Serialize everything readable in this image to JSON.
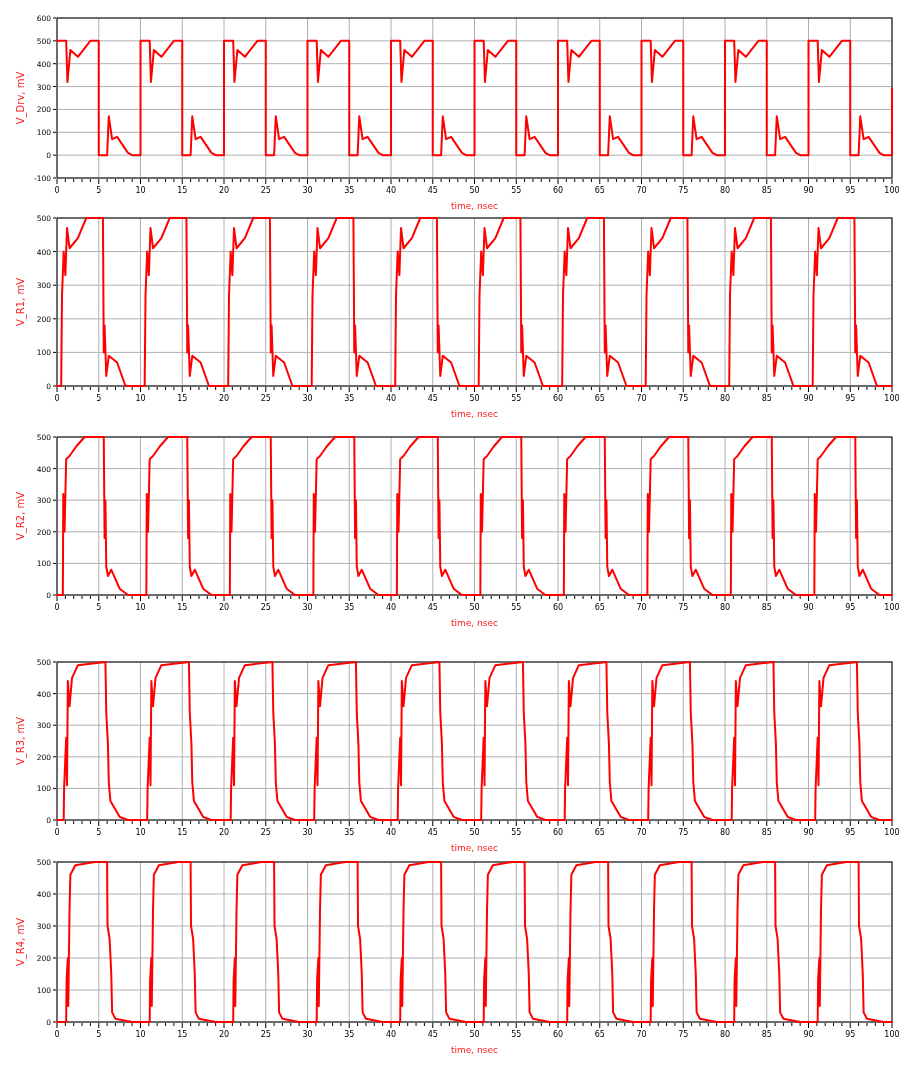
{
  "chart_data": [
    {
      "type": "line",
      "xlabel": "time, nsec",
      "ylabel": "V_Drv, mV",
      "xlim": [
        0,
        100
      ],
      "ylim": [
        -100,
        600
      ],
      "xticks": [
        0,
        5,
        10,
        15,
        20,
        25,
        30,
        35,
        40,
        45,
        50,
        55,
        60,
        65,
        70,
        75,
        80,
        85,
        90,
        95,
        100
      ],
      "yticks": [
        -100,
        0,
        100,
        200,
        300,
        400,
        500,
        600
      ],
      "grid": true,
      "x": [
        0,
        1.1,
        1.25,
        1.6,
        2.5,
        4,
        5,
        5,
        6,
        6.2,
        6.6,
        7.2,
        8.5,
        9,
        10,
        10,
        11.1,
        11.25,
        11.6,
        12.5,
        14,
        15,
        15,
        16,
        16.2,
        16.6,
        17.2,
        18.5,
        19,
        20,
        20,
        21.1,
        21.25,
        21.6,
        22.5,
        24,
        25,
        25,
        26,
        26.2,
        26.6,
        27.2,
        28.5,
        29,
        30,
        30,
        31.1,
        31.25,
        31.6,
        32.5,
        34,
        35,
        35,
        36,
        36.2,
        36.6,
        37.2,
        38.5,
        39,
        40,
        40,
        41.1,
        41.25,
        41.6,
        42.5,
        44,
        45,
        45,
        46,
        46.2,
        46.6,
        47.2,
        48.5,
        49,
        50,
        50,
        51.1,
        51.25,
        51.6,
        52.5,
        54,
        55,
        55,
        56,
        56.2,
        56.6,
        57.2,
        58.5,
        59,
        60,
        60,
        61.1,
        61.25,
        61.6,
        62.5,
        64,
        65,
        65,
        66,
        66.2,
        66.6,
        67.2,
        68.5,
        69,
        70,
        70,
        71.1,
        71.25,
        71.6,
        72.5,
        74,
        75,
        75,
        76,
        76.2,
        76.6,
        77.2,
        78.5,
        79,
        80,
        80,
        81.1,
        81.25,
        81.6,
        82.5,
        84,
        85,
        85,
        86,
        86.2,
        86.6,
        87.2,
        88.5,
        89,
        90,
        90,
        91.1,
        91.25,
        91.6,
        92.5,
        94,
        95,
        95,
        96,
        96.2,
        96.6,
        97.2,
        98.5,
        99,
        100,
        100
      ],
      "series": [
        {
          "color": "#ff0000",
          "values": [
            500,
            500,
            320,
            460,
            430,
            500,
            500,
            0,
            0,
            170,
            70,
            80,
            10,
            0,
            0,
            500,
            500,
            320,
            460,
            430,
            500,
            500,
            0,
            0,
            170,
            70,
            80,
            10,
            0,
            0,
            500,
            500,
            320,
            460,
            430,
            500,
            500,
            0,
            0,
            170,
            70,
            80,
            10,
            0,
            0,
            500,
            500,
            320,
            460,
            430,
            500,
            500,
            0,
            0,
            170,
            70,
            80,
            10,
            0,
            0,
            500,
            500,
            320,
            460,
            430,
            500,
            500,
            0,
            0,
            170,
            70,
            80,
            10,
            0,
            0,
            500,
            500,
            320,
            460,
            430,
            500,
            500,
            0,
            0,
            170,
            70,
            80,
            10,
            0,
            0,
            500,
            500,
            320,
            460,
            430,
            500,
            500,
            0,
            0,
            170,
            70,
            80,
            10,
            0,
            0,
            500,
            500,
            320,
            460,
            430,
            500,
            500,
            0,
            0,
            170,
            70,
            80,
            10,
            0,
            0,
            500,
            500,
            320,
            460,
            430,
            500,
            500,
            0,
            0,
            170,
            70,
            80,
            10,
            0,
            0,
            500,
            500,
            320,
            460,
            430,
            500,
            500,
            0,
            0,
            170,
            70,
            80,
            10,
            0,
            0,
            290
          ]
        }
      ]
    },
    {
      "type": "line",
      "xlabel": "time, nsec",
      "ylabel": "V_R1, mV",
      "xlim": [
        0,
        100
      ],
      "ylim": [
        0,
        500
      ],
      "xticks": [
        0,
        5,
        10,
        15,
        20,
        25,
        30,
        35,
        40,
        45,
        50,
        55,
        60,
        65,
        70,
        75,
        80,
        85,
        90,
        95,
        100
      ],
      "yticks": [
        0,
        100,
        200,
        300,
        400,
        500
      ],
      "grid": true,
      "x": [
        0,
        0.5,
        0.6,
        0.8,
        1,
        1.2,
        1.5,
        2.5,
        3.5,
        5.5,
        5.6,
        5.7,
        5.9,
        6.2,
        7.2,
        8.2,
        10.5,
        10.6,
        10.8,
        11,
        11.2,
        11.5,
        12.5,
        13.5,
        15.5,
        15.6,
        15.7,
        15.9,
        16.2,
        17.2,
        18.2,
        20.5,
        20.6,
        20.8,
        21,
        21.2,
        21.5,
        22.5,
        23.5,
        25.5,
        25.6,
        25.7,
        25.9,
        26.2,
        27.2,
        28.2,
        30.5,
        30.6,
        30.8,
        31,
        31.2,
        31.5,
        32.5,
        33.5,
        35.5,
        35.6,
        35.7,
        35.9,
        36.2,
        37.2,
        38.2,
        40.5,
        40.6,
        40.8,
        41,
        41.2,
        41.5,
        42.5,
        43.5,
        45.5,
        45.6,
        45.7,
        45.9,
        46.2,
        47.2,
        48.2,
        50.5,
        50.6,
        50.8,
        51,
        51.2,
        51.5,
        52.5,
        53.5,
        55.5,
        55.6,
        55.7,
        55.9,
        56.2,
        57.2,
        58.2,
        60.5,
        60.6,
        60.8,
        61,
        61.2,
        61.5,
        62.5,
        63.5,
        65.5,
        65.6,
        65.7,
        65.9,
        66.2,
        67.2,
        68.2,
        70.5,
        70.6,
        70.8,
        71,
        71.2,
        71.5,
        72.5,
        73.5,
        75.5,
        75.6,
        75.7,
        75.9,
        76.2,
        77.2,
        78.2,
        80.5,
        80.6,
        80.8,
        81,
        81.2,
        81.5,
        82.5,
        83.5,
        85.5,
        85.6,
        85.7,
        85.9,
        86.2,
        87.2,
        88.2,
        90.5,
        90.6,
        90.8,
        91,
        91.2,
        91.5,
        92.5,
        93.5,
        95.5,
        95.6,
        95.7,
        95.9,
        96.2,
        97.2,
        98.2,
        100
      ],
      "series": [
        {
          "color": "#ff0000",
          "values": [
            0,
            0,
            270,
            400,
            330,
            470,
            410,
            440,
            500,
            500,
            100,
            180,
            30,
            90,
            70,
            0,
            0,
            270,
            400,
            330,
            470,
            410,
            440,
            500,
            500,
            100,
            180,
            30,
            90,
            70,
            0,
            0,
            270,
            400,
            330,
            470,
            410,
            440,
            500,
            500,
            100,
            180,
            30,
            90,
            70,
            0,
            0,
            270,
            400,
            330,
            470,
            410,
            440,
            500,
            500,
            100,
            180,
            30,
            90,
            70,
            0,
            0,
            270,
            400,
            330,
            470,
            410,
            440,
            500,
            500,
            100,
            180,
            30,
            90,
            70,
            0,
            0,
            270,
            400,
            330,
            470,
            410,
            440,
            500,
            500,
            100,
            180,
            30,
            90,
            70,
            0,
            0,
            270,
            400,
            330,
            470,
            410,
            440,
            500,
            500,
            100,
            180,
            30,
            90,
            70,
            0,
            0,
            270,
            400,
            330,
            470,
            410,
            440,
            500,
            500,
            100,
            180,
            30,
            90,
            70,
            0,
            0,
            270,
            400,
            330,
            470,
            410,
            440,
            500,
            500,
            100,
            180,
            30,
            90,
            70,
            0,
            0,
            270,
            400,
            330,
            470,
            410,
            440,
            500,
            500,
            100,
            180,
            30,
            90,
            70,
            0,
            0
          ]
        }
      ]
    },
    {
      "type": "line",
      "xlabel": "time, nsec",
      "ylabel": "V_R2, mV",
      "xlim": [
        0,
        100
      ],
      "ylim": [
        0,
        500
      ],
      "xticks": [
        0,
        5,
        10,
        15,
        20,
        25,
        30,
        35,
        40,
        45,
        50,
        55,
        60,
        65,
        70,
        75,
        80,
        85,
        90,
        95,
        100
      ],
      "yticks": [
        0,
        100,
        200,
        300,
        400,
        500
      ],
      "grid": true,
      "x": [
        0,
        0.7,
        0.75,
        0.9,
        1.1,
        1.5,
        2.3,
        3.3,
        5.6,
        5.7,
        5.8,
        5.9,
        6.1,
        6.5,
        7.5,
        8.5,
        10.7,
        10.75,
        10.9,
        11.1,
        11.5,
        12.3,
        13.3,
        15.6,
        15.7,
        15.8,
        15.9,
        16.1,
        16.5,
        17.5,
        18.5,
        20.7,
        20.75,
        20.9,
        21.1,
        21.5,
        22.3,
        23.3,
        25.6,
        25.7,
        25.8,
        25.9,
        26.1,
        26.5,
        27.5,
        28.5,
        30.7,
        30.75,
        30.9,
        31.1,
        31.5,
        32.3,
        33.3,
        35.6,
        35.7,
        35.8,
        35.9,
        36.1,
        36.5,
        37.5,
        38.5,
        40.7,
        40.75,
        40.9,
        41.1,
        41.5,
        42.3,
        43.3,
        45.6,
        45.7,
        45.8,
        45.9,
        46.1,
        46.5,
        47.5,
        48.5,
        50.7,
        50.75,
        50.9,
        51.1,
        51.5,
        52.3,
        53.3,
        55.6,
        55.7,
        55.8,
        55.9,
        56.1,
        56.5,
        57.5,
        58.5,
        60.7,
        60.75,
        60.9,
        61.1,
        61.5,
        62.3,
        63.3,
        65.6,
        65.7,
        65.8,
        65.9,
        66.1,
        66.5,
        67.5,
        68.5,
        70.7,
        70.75,
        70.9,
        71.1,
        71.5,
        72.3,
        73.3,
        75.6,
        75.7,
        75.8,
        75.9,
        76.1,
        76.5,
        77.5,
        78.5,
        80.7,
        80.75,
        80.9,
        81.1,
        81.5,
        82.3,
        83.3,
        85.6,
        85.7,
        85.8,
        85.9,
        86.1,
        86.5,
        87.5,
        88.5,
        90.7,
        90.75,
        90.9,
        91.1,
        91.5,
        92.3,
        93.3,
        95.6,
        95.7,
        95.8,
        95.9,
        96.1,
        96.5,
        97.5,
        98.5,
        100
      ],
      "series": [
        {
          "color": "#ff0000",
          "values": [
            0,
            0,
            320,
            200,
            430,
            440,
            470,
            500,
            500,
            180,
            300,
            90,
            60,
            80,
            20,
            0,
            0,
            320,
            200,
            430,
            440,
            470,
            500,
            500,
            180,
            300,
            90,
            60,
            80,
            20,
            0,
            0,
            320,
            200,
            430,
            440,
            470,
            500,
            500,
            180,
            300,
            90,
            60,
            80,
            20,
            0,
            0,
            320,
            200,
            430,
            440,
            470,
            500,
            500,
            180,
            300,
            90,
            60,
            80,
            20,
            0,
            0,
            320,
            200,
            430,
            440,
            470,
            500,
            500,
            180,
            300,
            90,
            60,
            80,
            20,
            0,
            0,
            320,
            200,
            430,
            440,
            470,
            500,
            500,
            180,
            300,
            90,
            60,
            80,
            20,
            0,
            0,
            320,
            200,
            430,
            440,
            470,
            500,
            500,
            180,
            300,
            90,
            60,
            80,
            20,
            0,
            0,
            320,
            200,
            430,
            440,
            470,
            500,
            500,
            180,
            300,
            90,
            60,
            80,
            20,
            0,
            0,
            320,
            200,
            430,
            440,
            470,
            500,
            500,
            180,
            300,
            90,
            60,
            80,
            20,
            0,
            0,
            320,
            200,
            430,
            440,
            470,
            500,
            500,
            180,
            300,
            90,
            60,
            80,
            20,
            0,
            0
          ]
        }
      ]
    },
    {
      "type": "line",
      "xlabel": "time, nsec",
      "ylabel": "V_R3, mV",
      "xlim": [
        0,
        100
      ],
      "ylim": [
        0,
        500
      ],
      "xticks": [
        0,
        5,
        10,
        15,
        20,
        25,
        30,
        35,
        40,
        45,
        50,
        55,
        60,
        65,
        70,
        75,
        80,
        85,
        90,
        95,
        100
      ],
      "yticks": [
        0,
        100,
        200,
        300,
        400,
        500
      ],
      "grid": true,
      "x": [
        0,
        0.8,
        0.85,
        1.1,
        1.2,
        1.3,
        1.5,
        1.8,
        2.5,
        5.8,
        5.9,
        6.1,
        6.2,
        6.4,
        7.5,
        8.5,
        10.8,
        10.85,
        11.1,
        11.2,
        11.3,
        11.5,
        11.8,
        12.5,
        15.8,
        15.9,
        16.1,
        16.2,
        16.4,
        17.5,
        18.5,
        20.8,
        20.85,
        21.1,
        21.2,
        21.3,
        21.5,
        21.8,
        22.5,
        25.8,
        25.9,
        26.1,
        26.2,
        26.4,
        27.5,
        28.5,
        30.8,
        30.85,
        31.1,
        31.2,
        31.3,
        31.5,
        31.8,
        32.5,
        35.8,
        35.9,
        36.1,
        36.2,
        36.4,
        37.5,
        38.5,
        40.8,
        40.85,
        41.1,
        41.2,
        41.3,
        41.5,
        41.8,
        42.5,
        45.8,
        45.9,
        46.1,
        46.2,
        46.4,
        47.5,
        48.5,
        50.8,
        50.85,
        51.1,
        51.2,
        51.3,
        51.5,
        51.8,
        52.5,
        55.8,
        55.9,
        56.1,
        56.2,
        56.4,
        57.5,
        58.5,
        60.8,
        60.85,
        61.1,
        61.2,
        61.3,
        61.5,
        61.8,
        62.5,
        65.8,
        65.9,
        66.1,
        66.2,
        66.4,
        67.5,
        68.5,
        70.8,
        70.85,
        71.1,
        71.2,
        71.3,
        71.5,
        71.8,
        72.5,
        75.8,
        75.9,
        76.1,
        76.2,
        76.4,
        77.5,
        78.5,
        80.8,
        80.85,
        81.1,
        81.2,
        81.3,
        81.5,
        81.8,
        82.5,
        85.8,
        85.9,
        86.1,
        86.2,
        86.4,
        87.5,
        88.5,
        90.8,
        90.85,
        91.1,
        91.2,
        91.3,
        91.5,
        91.8,
        92.5,
        95.8,
        95.9,
        96.1,
        96.2,
        96.4,
        97.5,
        98.5,
        100
      ],
      "series": [
        {
          "color": "#ff0000",
          "values": [
            0,
            0,
            100,
            260,
            110,
            440,
            360,
            450,
            490,
            500,
            340,
            240,
            120,
            60,
            10,
            0,
            0,
            100,
            260,
            110,
            440,
            360,
            450,
            490,
            500,
            340,
            240,
            120,
            60,
            10,
            0,
            0,
            100,
            260,
            110,
            440,
            360,
            450,
            490,
            500,
            340,
            240,
            120,
            60,
            10,
            0,
            0,
            100,
            260,
            110,
            440,
            360,
            450,
            490,
            500,
            340,
            240,
            120,
            60,
            10,
            0,
            0,
            100,
            260,
            110,
            440,
            360,
            450,
            490,
            500,
            340,
            240,
            120,
            60,
            10,
            0,
            0,
            100,
            260,
            110,
            440,
            360,
            450,
            490,
            500,
            340,
            240,
            120,
            60,
            10,
            0,
            0,
            100,
            260,
            110,
            440,
            360,
            450,
            490,
            500,
            340,
            240,
            120,
            60,
            10,
            0,
            0,
            100,
            260,
            110,
            440,
            360,
            450,
            490,
            500,
            340,
            240,
            120,
            60,
            10,
            0,
            0,
            100,
            260,
            110,
            440,
            360,
            450,
            490,
            500,
            340,
            240,
            120,
            60,
            10,
            0,
            0,
            100,
            260,
            110,
            440,
            360,
            450,
            490,
            500,
            340,
            240,
            120,
            60,
            10,
            0,
            0
          ]
        }
      ]
    },
    {
      "type": "line",
      "xlabel": "time, nsec",
      "ylabel": "V_R4, mV",
      "xlim": [
        0,
        100
      ],
      "ylim": [
        0,
        500
      ],
      "xticks": [
        0,
        5,
        10,
        15,
        20,
        25,
        30,
        35,
        40,
        45,
        50,
        55,
        60,
        65,
        70,
        75,
        80,
        85,
        90,
        95,
        100
      ],
      "yticks": [
        0,
        100,
        200,
        300,
        400,
        500
      ],
      "grid": true,
      "x": [
        0,
        1.1,
        1.15,
        1.3,
        1.35,
        1.5,
        1.6,
        2.2,
        4.5,
        6,
        6.05,
        6.3,
        6.5,
        6.6,
        7,
        9,
        11.1,
        11.15,
        11.3,
        11.35,
        11.5,
        11.6,
        12.2,
        14.5,
        16,
        16.05,
        16.3,
        16.5,
        16.6,
        17,
        19,
        21.1,
        21.15,
        21.3,
        21.35,
        21.5,
        21.6,
        22.2,
        24.5,
        26,
        26.05,
        26.3,
        26.5,
        26.6,
        27,
        29,
        31.1,
        31.15,
        31.3,
        31.35,
        31.5,
        31.6,
        32.2,
        34.5,
        36,
        36.05,
        36.3,
        36.5,
        36.6,
        37,
        39,
        41.1,
        41.15,
        41.3,
        41.35,
        41.5,
        41.6,
        42.2,
        44.5,
        46,
        46.05,
        46.3,
        46.5,
        46.6,
        47,
        49,
        51.1,
        51.15,
        51.3,
        51.35,
        51.5,
        51.6,
        52.2,
        54.5,
        56,
        56.05,
        56.3,
        56.5,
        56.6,
        57,
        59,
        61.1,
        61.15,
        61.3,
        61.35,
        61.5,
        61.6,
        62.2,
        64.5,
        66,
        66.05,
        66.3,
        66.5,
        66.6,
        67,
        69,
        71.1,
        71.15,
        71.3,
        71.35,
        71.5,
        71.6,
        72.2,
        74.5,
        76,
        76.05,
        76.3,
        76.5,
        76.6,
        77,
        79,
        81.1,
        81.15,
        81.3,
        81.35,
        81.5,
        81.6,
        82.2,
        84.5,
        86,
        86.05,
        86.3,
        86.5,
        86.6,
        87,
        89,
        91.1,
        91.15,
        91.3,
        91.35,
        91.5,
        91.6,
        92.2,
        94.5,
        96,
        96.05,
        96.3,
        96.5,
        96.6,
        97,
        99,
        100
      ],
      "series": [
        {
          "color": "#ff0000",
          "values": [
            0,
            0,
            130,
            200,
            50,
            350,
            460,
            490,
            500,
            500,
            300,
            260,
            150,
            30,
            10,
            0,
            0,
            130,
            200,
            50,
            350,
            460,
            490,
            500,
            500,
            300,
            260,
            150,
            30,
            10,
            0,
            0,
            130,
            200,
            50,
            350,
            460,
            490,
            500,
            500,
            300,
            260,
            150,
            30,
            10,
            0,
            0,
            130,
            200,
            50,
            350,
            460,
            490,
            500,
            500,
            300,
            260,
            150,
            30,
            10,
            0,
            0,
            130,
            200,
            50,
            350,
            460,
            490,
            500,
            500,
            300,
            260,
            150,
            30,
            10,
            0,
            0,
            130,
            200,
            50,
            350,
            460,
            490,
            500,
            500,
            300,
            260,
            150,
            30,
            10,
            0,
            0,
            130,
            200,
            50,
            350,
            460,
            490,
            500,
            500,
            300,
            260,
            150,
            30,
            10,
            0,
            0,
            130,
            200,
            50,
            350,
            460,
            490,
            500,
            500,
            300,
            260,
            150,
            30,
            10,
            0,
            0,
            130,
            200,
            50,
            350,
            460,
            490,
            500,
            500,
            300,
            260,
            150,
            30,
            10,
            0,
            0,
            130,
            200,
            50,
            350,
            460,
            490,
            500,
            500,
            300,
            260,
            150,
            30,
            10,
            0,
            0
          ]
        }
      ]
    }
  ]
}
